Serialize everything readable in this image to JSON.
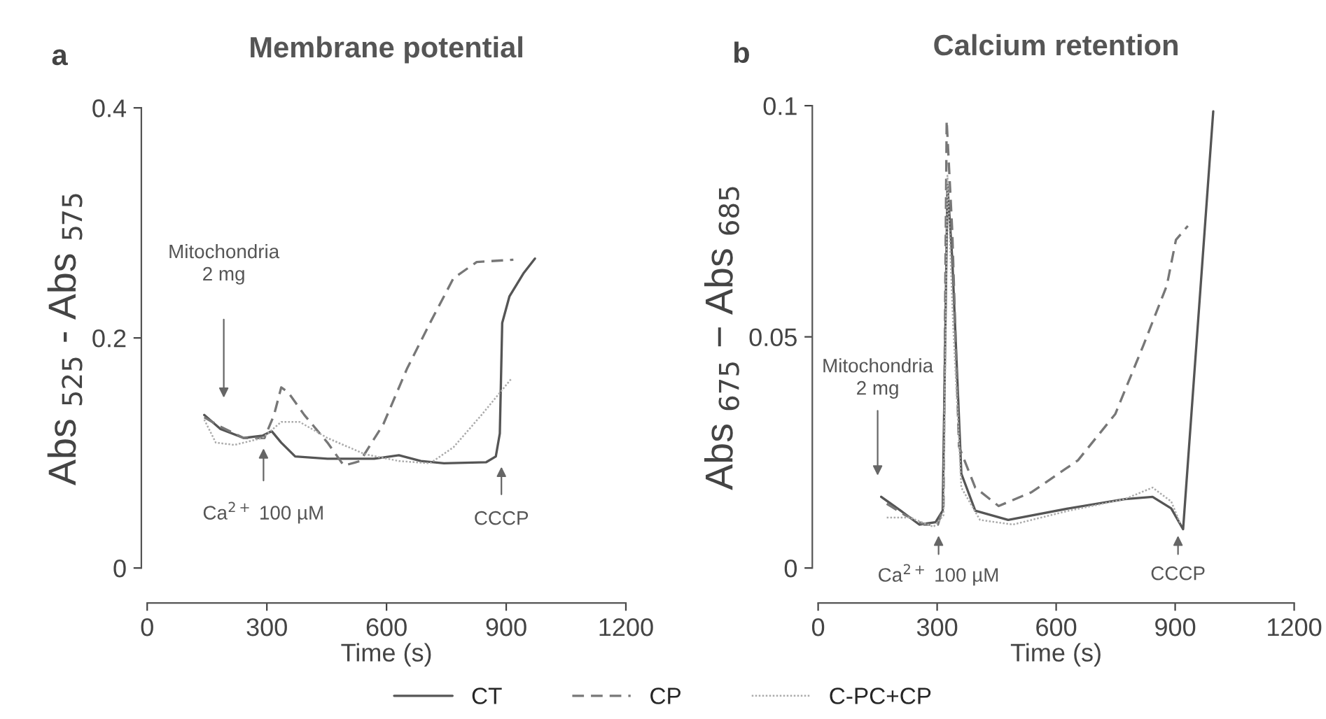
{
  "chart_data": [
    {
      "type": "line",
      "title": "Membrane potential",
      "xlabel": "Time (s)",
      "ylabel": "Abs $_{525}$ - Abs $_{575}$",
      "xlim": [
        0,
        1200
      ],
      "xticks": [
        0,
        300,
        600,
        900,
        1200
      ],
      "ylim": [
        0,
        0.4
      ],
      "yticks": [
        0,
        0.2,
        0.4
      ],
      "grid": false,
      "legend": "bottom",
      "series": [
        {
          "name": "CT",
          "color": "#555555",
          "line_style": "solid",
          "x": [
            143,
            183,
            242,
            289,
            312,
            336,
            371,
            452,
            569,
            631,
            686,
            744,
            850,
            874,
            884,
            890,
            908,
            943,
            972
          ],
          "values": [
            0.133,
            0.121,
            0.113,
            0.115,
            0.119,
            0.109,
            0.097,
            0.095,
            0.095,
            0.098,
            0.093,
            0.091,
            0.092,
            0.097,
            0.117,
            0.213,
            0.236,
            0.256,
            0.269
          ]
        },
        {
          "name": "CP",
          "color": "#777777",
          "line_style": "dashed",
          "x": [
            143,
            183,
            242,
            294,
            318,
            336,
            353,
            394,
            452,
            493,
            534,
            592,
            651,
            709,
            768,
            826,
            918
          ],
          "values": [
            0.131,
            0.123,
            0.113,
            0.113,
            0.133,
            0.157,
            0.153,
            0.133,
            0.109,
            0.089,
            0.093,
            0.125,
            0.173,
            0.213,
            0.252,
            0.266,
            0.268
          ]
        },
        {
          "name": "C-PC+CP",
          "color": "#aaaaaa",
          "line_style": "dotted",
          "x": [
            143,
            172,
            219,
            289,
            336,
            382,
            452,
            545,
            631,
            709,
            768,
            838,
            914
          ],
          "values": [
            0.129,
            0.109,
            0.107,
            0.113,
            0.127,
            0.127,
            0.113,
            0.099,
            0.093,
            0.091,
            0.105,
            0.133,
            0.165
          ]
        }
      ],
      "annotations": [
        "a",
        "Mitochondria\n2 mg",
        "Ca$^{2+}$ 100 µM",
        "CCCP"
      ]
    },
    {
      "type": "line",
      "title": "Calcium retention",
      "xlabel": "Time (s)",
      "ylabel": "Abs $_{675}$ − Abs $_{685}$",
      "xlim": [
        0,
        1200
      ],
      "xticks": [
        0,
        300,
        600,
        900,
        1200
      ],
      "ylim": [
        0,
        0.1
      ],
      "yticks": [
        0,
        0.05,
        0.1
      ],
      "grid": false,
      "series": [
        {
          "color": "#555555",
          "line_style": "solid",
          "x": [
            159,
            208,
            255,
            296,
            314,
            326,
            338,
            361,
            396,
            479,
            632,
            773,
            843,
            890,
            920,
            996
          ],
          "values": [
            0.0154,
            0.0124,
            0.0094,
            0.0099,
            0.0124,
            0.0829,
            0.067,
            0.0204,
            0.0124,
            0.0104,
            0.0129,
            0.0149,
            0.0154,
            0.0129,
            0.0084,
            0.0988
          ]
        },
        {
          "color": "#777777",
          "line_style": "dashed",
          "x": [
            173,
            220,
            267,
            302,
            316,
            324,
            338,
            355,
            396,
            455,
            538,
            655,
            749,
            820,
            879,
            902,
            932
          ],
          "values": [
            0.0139,
            0.0114,
            0.0094,
            0.0094,
            0.0134,
            0.0968,
            0.073,
            0.0263,
            0.0174,
            0.0134,
            0.0164,
            0.0233,
            0.0333,
            0.0482,
            0.0611,
            0.071,
            0.074
          ]
        },
        {
          "color": "#aaaaaa",
          "line_style": "dotted",
          "x": [
            173,
            232,
            291,
            316,
            326,
            340,
            361,
            408,
            491,
            632,
            773,
            843,
            890,
            914
          ],
          "values": [
            0.0109,
            0.0109,
            0.0089,
            0.0114,
            0.0849,
            0.0531,
            0.0174,
            0.0104,
            0.0094,
            0.0124,
            0.0149,
            0.0174,
            0.0144,
            0.0094
          ]
        }
      ],
      "annotations": [
        "b",
        "Mitochondria\n2 mg",
        "Ca$^{2+}$ 100 µM",
        "CCCP"
      ]
    }
  ]
}
